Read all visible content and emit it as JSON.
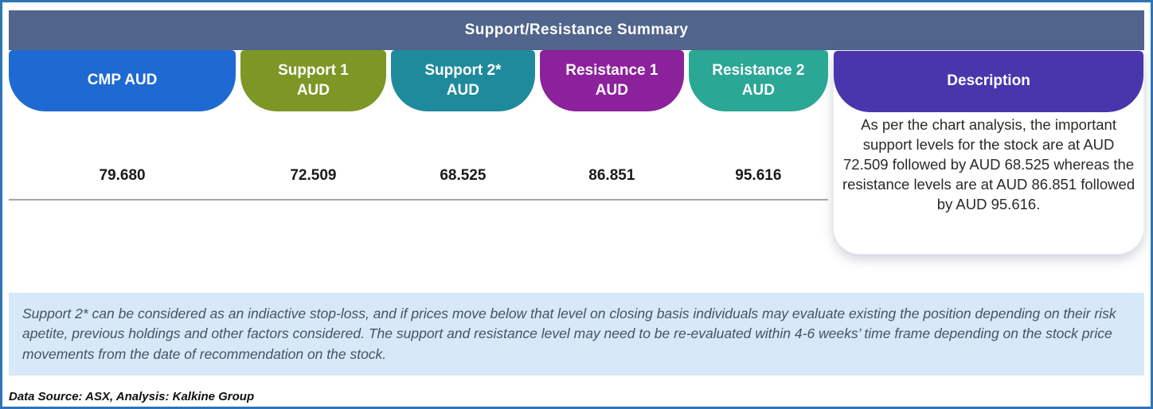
{
  "title": "Support/Resistance Summary",
  "header_bar_color": "#51658c",
  "columns": [
    {
      "label_line1": "CMP AUD",
      "label_line2": "",
      "value": "79.680",
      "color": "#1f69d2"
    },
    {
      "label_line1": "Support 1",
      "label_line2": "AUD",
      "value": "72.509",
      "color": "#7d9626"
    },
    {
      "label_line1": "Support 2*",
      "label_line2": "AUD",
      "value": "68.525",
      "color": "#1f8a9c"
    },
    {
      "label_line1": "Resistance 1",
      "label_line2": "AUD",
      "value": "86.851",
      "color": "#8c219c"
    },
    {
      "label_line1": "Resistance 2",
      "label_line2": "AUD",
      "value": "95.616",
      "color": "#2aa795"
    }
  ],
  "description": {
    "label": "Description",
    "color": "#4936ad",
    "text": "As per the chart analysis, the important support levels for the stock are at AUD 72.509 followed by AUD 68.525 whereas the resistance levels are at AUD 86.851 followed by AUD 95.616."
  },
  "note": "Support 2* can be considered as an indiactive stop-loss, and if prices move below that level on closing basis individuals may evaluate existing the position depending on their risk apetite, previous holdings and other factors considered. The support and resistance level may need to be re-evaluated within 4-6 weeks’ time frame depending on the stock price movements from  the date of recommendation on the stock.",
  "source": "Data Source: ASX, Analysis: Kalkine Group",
  "accent_colors": {
    "outer_border": "#2e75b6",
    "note_background": "#d7e9f8",
    "separator_line": "#a6a6a6"
  },
  "chart_data": {
    "type": "table",
    "title": "Support/Resistance Summary",
    "columns": [
      "CMP AUD",
      "Support 1 AUD",
      "Support 2* AUD",
      "Resistance 1 AUD",
      "Resistance 2 AUD",
      "Description"
    ],
    "rows": [
      [
        "79.680",
        "72.509",
        "68.525",
        "86.851",
        "95.616",
        "As per the chart analysis, the important support levels for the stock are at AUD 72.509 followed by AUD 68.525 whereas the resistance levels are at AUD 86.851 followed by AUD 95.616."
      ]
    ],
    "values": {
      "cmp_aud": 79.68,
      "support_1_aud": 72.509,
      "support_2_aud": 68.525,
      "resistance_1_aud": 86.851,
      "resistance_2_aud": 95.616
    }
  }
}
